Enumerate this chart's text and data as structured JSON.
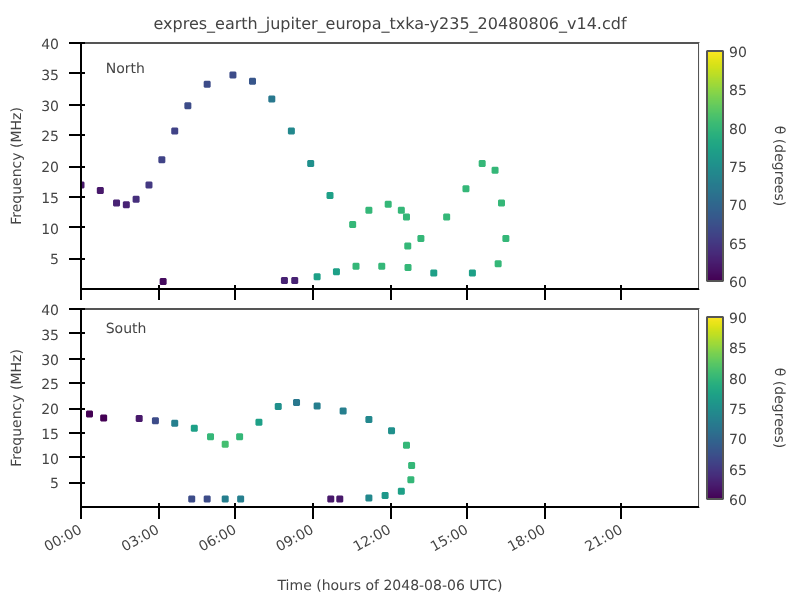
{
  "chart_data": [
    {
      "type": "scatter",
      "title": "expres_earth_jupiter_europa_txka-y235_20480806_v14.cdf",
      "ylabel": "Frequency (MHz)",
      "clabel": "θ (degrees)",
      "annotations": [
        "North"
      ],
      "marker": "square",
      "tick_labels": "y",
      "x": [
        0,
        0.75,
        1.38,
        1.76,
        2.14,
        2.64,
        3.14,
        3.64,
        4.15,
        4.9,
        5.9,
        6.66,
        7.41,
        8.17,
        8.92,
        9.67,
        10.55,
        11.18,
        11.93,
        12.44,
        12.64,
        12.69,
        13.2,
        14.2,
        14.95,
        15.58,
        16.08,
        16.33,
        16.5,
        16.2,
        15.2,
        13.7,
        12.7,
        11.68,
        10.68,
        9.92,
        9.17,
        3.19,
        7.9,
        8.3
      ],
      "values": [
        16.9,
        16.0,
        14.0,
        13.7,
        14.6,
        16.9,
        21.0,
        25.7,
        29.8,
        33.3,
        34.8,
        33.8,
        30.9,
        25.7,
        20.4,
        15.2,
        10.5,
        12.8,
        13.8,
        12.8,
        11.7,
        7.0,
        8.2,
        11.7,
        16.3,
        20.4,
        19.3,
        14.0,
        8.2,
        4.1,
        2.6,
        2.6,
        3.5,
        3.7,
        3.7,
        2.8,
        2.0,
        1.2,
        1.4,
        1.4
      ],
      "cvalues": [
        62,
        62,
        63,
        63,
        64,
        65,
        66,
        66,
        67,
        67,
        67,
        68,
        72,
        74,
        75,
        77,
        80,
        80,
        80,
        80,
        80,
        80,
        80,
        80,
        80,
        80,
        80,
        80,
        80,
        80,
        77,
        77,
        80,
        80,
        80,
        77,
        77,
        61,
        63,
        63
      ],
      "xlim": [
        0,
        24
      ],
      "xticks": [
        {
          "value": 0,
          "label": null
        },
        {
          "value": 3,
          "label": null
        },
        {
          "value": 6,
          "label": null
        },
        {
          "value": 9,
          "label": null
        },
        {
          "value": 12,
          "label": null
        },
        {
          "value": 15,
          "label": null
        },
        {
          "value": 18,
          "label": null
        },
        {
          "value": 21,
          "label": null
        }
      ],
      "ylim": [
        0,
        40
      ],
      "yticks": [
        5,
        10,
        15,
        20,
        25,
        30,
        35,
        40
      ],
      "clim": [
        60,
        90
      ],
      "cticks": [
        60,
        65,
        70,
        75,
        80,
        85,
        90
      ]
    },
    {
      "type": "scatter",
      "xlabel": "Time (hours of 2048-08-06 UTC)",
      "ylabel": "Frequency (MHz)",
      "clabel": "θ (degrees)",
      "annotations": [
        "South"
      ],
      "marker": "square",
      "x": [
        0.33,
        0.88,
        2.26,
        2.89,
        3.64,
        4.4,
        5.03,
        5.6,
        6.16,
        6.91,
        7.66,
        8.37,
        9.17,
        10.18,
        11.18,
        12.06,
        12.64,
        12.84,
        12.81,
        12.44,
        11.81,
        11.18,
        4.3,
        4.9,
        5.6,
        6.2,
        9.7,
        10.05
      ],
      "values": [
        18.8,
        18.0,
        17.9,
        17.4,
        16.9,
        15.9,
        14.2,
        12.7,
        14.2,
        17.1,
        20.3,
        21.1,
        20.4,
        19.4,
        17.7,
        15.4,
        12.5,
        8.4,
        5.5,
        3.2,
        2.3,
        1.8,
        1.6,
        1.6,
        1.6,
        1.6,
        1.6,
        1.6
      ],
      "cvalues": [
        60,
        60,
        62,
        67,
        73,
        77,
        80,
        81,
        80,
        77,
        75,
        72,
        73,
        73,
        74,
        75,
        80,
        80,
        80,
        77,
        76,
        74,
        67,
        67,
        73,
        73,
        62,
        62
      ],
      "xlim": [
        0,
        24
      ],
      "xticks": [
        {
          "value": 0,
          "label": "00:00"
        },
        {
          "value": 3,
          "label": "03:00"
        },
        {
          "value": 6,
          "label": "06:00"
        },
        {
          "value": 9,
          "label": "09:00"
        },
        {
          "value": 12,
          "label": "12:00"
        },
        {
          "value": 15,
          "label": "15:00"
        },
        {
          "value": 18,
          "label": "18:00"
        },
        {
          "value": 21,
          "label": "21:00"
        }
      ],
      "ylim": [
        0,
        40
      ],
      "yticks": [
        5,
        10,
        15,
        20,
        25,
        30,
        35,
        40
      ],
      "clim": [
        60,
        90
      ],
      "cticks": [
        60,
        65,
        70,
        75,
        80,
        85,
        90
      ]
    }
  ]
}
